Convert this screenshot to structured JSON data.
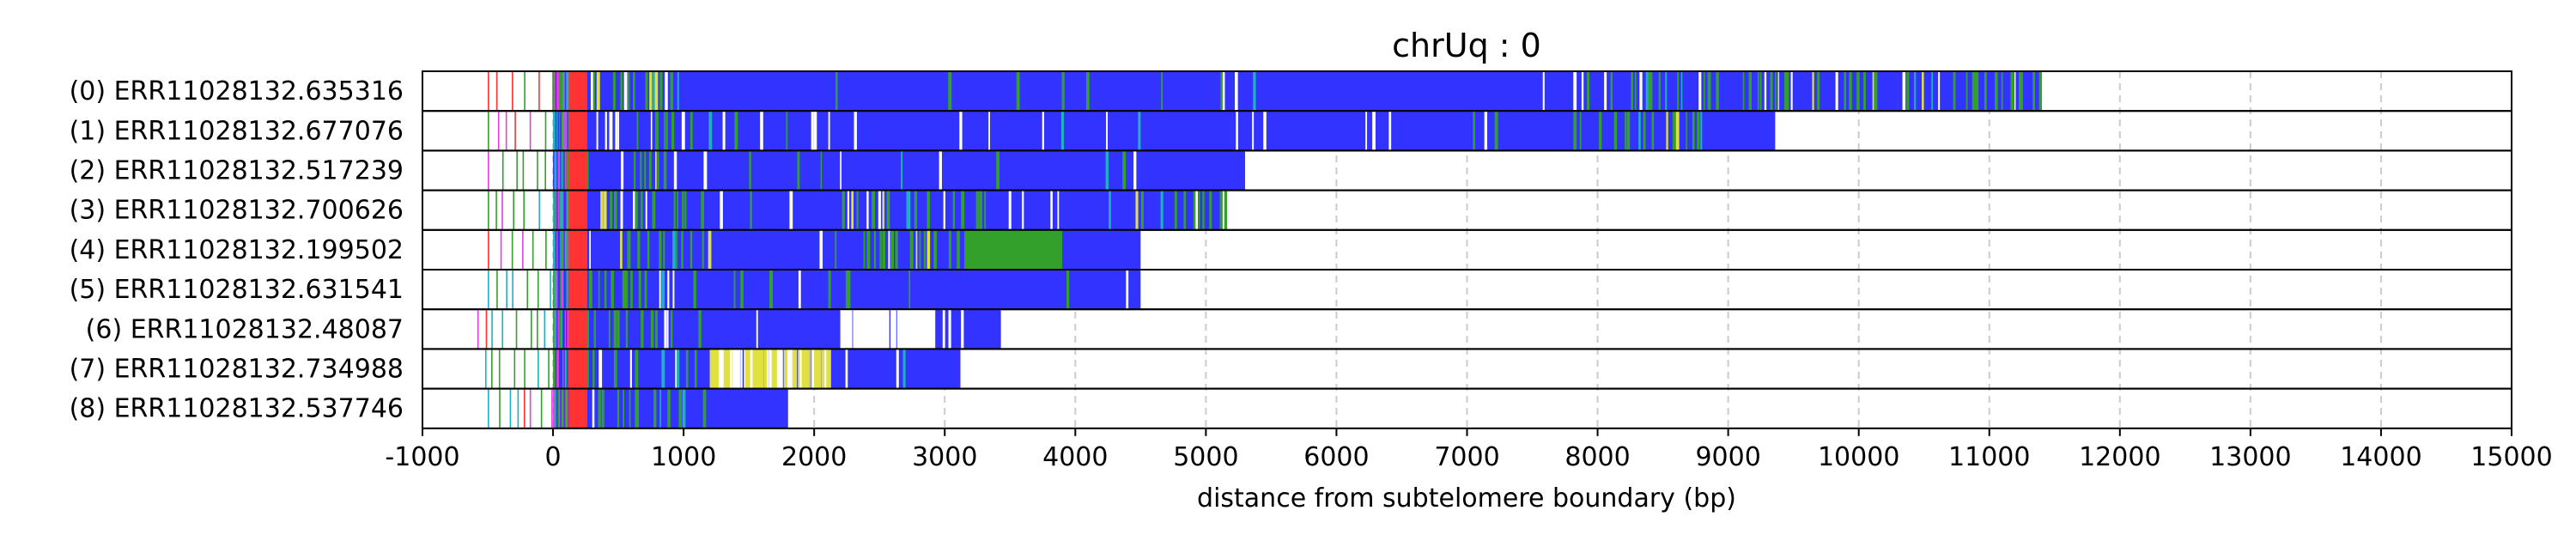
{
  "chart_data": {
    "type": "bar",
    "title": "chrUq : 0",
    "xlabel": "distance from subtelomere boundary (bp)",
    "ylabel": "",
    "xlim": [
      -1000,
      15000
    ],
    "xticks": [
      -1000,
      0,
      1000,
      2000,
      3000,
      4000,
      5000,
      6000,
      7000,
      8000,
      9000,
      10000,
      11000,
      12000,
      13000,
      14000,
      15000
    ],
    "grid": "vertical dashed",
    "colors": {
      "main": "#3333ff",
      "secondary": "#33a02c",
      "telomere": "#ff3333",
      "accent_magenta": "#e040e0",
      "accent_cyan": "#20b0c0",
      "accent_yellow": "#e0e040",
      "gap": "#ffffff",
      "frame": "#000000",
      "grid": "#cccccc"
    },
    "reads": [
      {
        "label": "(0) ERR11028132.635316",
        "start": -500,
        "end": 11400
      },
      {
        "label": "(1) ERR11028132.677076",
        "start": -500,
        "end": 9360
      },
      {
        "label": "(2) ERR11028132.517239",
        "start": -500,
        "end": 5300
      },
      {
        "label": "(3) ERR11028132.700626",
        "start": -500,
        "end": 5150
      },
      {
        "label": "(4) ERR11028132.199502",
        "start": -500,
        "end": 4500
      },
      {
        "label": "(5) ERR11028132.631541",
        "start": -500,
        "end": 4500
      },
      {
        "label": "(6) ERR11028132.48087",
        "start": -580,
        "end": 3430
      },
      {
        "label": "(7) ERR11028132.734988",
        "start": -520,
        "end": 3120
      },
      {
        "label": "(8) ERR11028132.537746",
        "start": -500,
        "end": 1800
      }
    ]
  }
}
